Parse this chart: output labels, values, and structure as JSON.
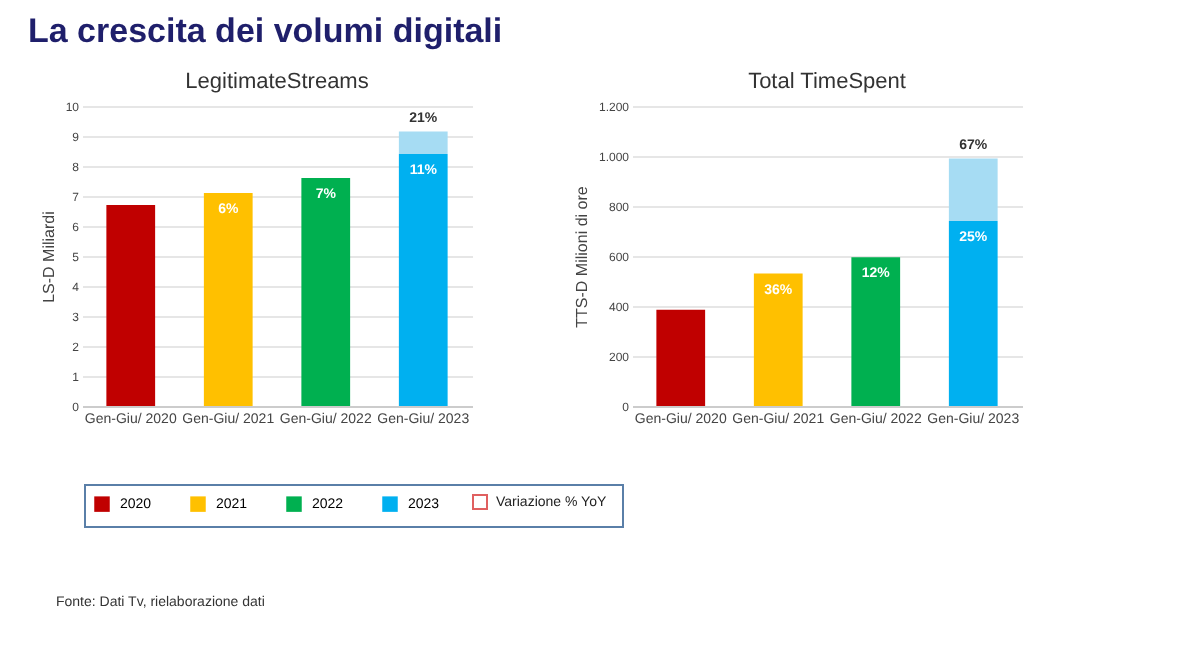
{
  "chart_data": [
    {
      "type": "bar",
      "title": "LegitimateStreams",
      "ylabel": "LS-D Miliardi",
      "stacked": true,
      "grid": "y",
      "legend": "bottom",
      "categories": [
        "Gen-Giu/ 2020",
        "Gen-Giu/ 2021",
        "Gen-Giu/ 2022",
        "Gen-Giu/ 2023"
      ],
      "series": [
        {
          "name": "2020",
          "color": "#c00000",
          "values": [
            6.7,
            null,
            null,
            null
          ]
        },
        {
          "name": "2021",
          "color": "#ffc000",
          "values": [
            null,
            7.1,
            null,
            null
          ]
        },
        {
          "name": "2022",
          "color": "#00b050",
          "values": [
            null,
            null,
            7.6,
            null
          ]
        },
        {
          "name": "2023",
          "color": "#00b0f0",
          "values": [
            null,
            null,
            null,
            8.4
          ]
        },
        {
          "color": "#a6dcf3",
          "values": [
            null,
            null,
            null,
            0.75
          ]
        }
      ],
      "ylim": [
        0,
        10
      ],
      "yticks": [
        0,
        1,
        2,
        3,
        4,
        5,
        6,
        7,
        8,
        9,
        10
      ],
      "annotations": [
        "La crescita dei volumi digitali",
        "Variazione % YoY",
        "Fonte: Dati Tv, rielaborazione dati",
        {
          "text": "6%",
          "x": "Gen-Giu/ 2021",
          "y": 7.1
        },
        {
          "text": "7%",
          "x": "Gen-Giu/ 2022",
          "y": 7.6
        },
        {
          "text": "11%",
          "x": "Gen-Giu/ 2023",
          "y": 8.4
        },
        {
          "text": "21%",
          "x": "Gen-Giu/ 2023",
          "y": 9.15
        }
      ]
    },
    {
      "type": "bar",
      "title": "Total TimeSpent",
      "ylabel": "TTS-D Milioni di ore",
      "stacked": true,
      "grid": "y",
      "legend": "bottom",
      "categories": [
        "Gen-Giu/ 2020",
        "Gen-Giu/ 2021",
        "Gen-Giu/ 2022",
        "Gen-Giu/ 2023"
      ],
      "series": [
        {
          "name": "2020",
          "color": "#c00000",
          "values": [
            385,
            null,
            null,
            null
          ]
        },
        {
          "name": "2021",
          "color": "#ffc000",
          "values": [
            null,
            530,
            null,
            null
          ]
        },
        {
          "name": "2022",
          "color": "#00b050",
          "values": [
            null,
            null,
            595,
            null
          ]
        },
        {
          "name": "2023",
          "color": "#00b0f0",
          "values": [
            null,
            null,
            null,
            740
          ]
        },
        {
          "color": "#a6dcf3",
          "values": [
            null,
            null,
            null,
            250
          ]
        }
      ],
      "ylim": [
        0,
        1200
      ],
      "yticks": [
        0,
        200,
        400,
        600,
        800,
        {
          "value": 1000,
          "label": "1.000"
        },
        {
          "value": 1200,
          "label": "1.200"
        }
      ],
      "annotations": [
        {
          "text": "36%",
          "x": "Gen-Giu/ 2021",
          "y": 530
        },
        {
          "text": "12%",
          "x": "Gen-Giu/ 2022",
          "y": 595
        },
        {
          "text": "25%",
          "x": "Gen-Giu/ 2023",
          "y": 740
        },
        {
          "text": "67%",
          "x": "Gen-Giu/ 2023",
          "y": 990
        }
      ]
    }
  ]
}
